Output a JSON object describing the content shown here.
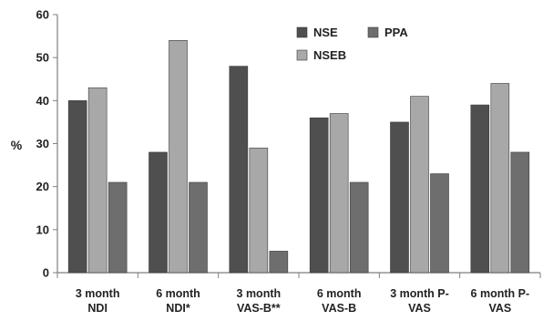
{
  "chart_data": {
    "type": "bar",
    "title": "",
    "xlabel": "",
    "ylabel": "%",
    "ylim": [
      0,
      60
    ],
    "yticks": [
      0,
      10,
      20,
      30,
      40,
      50,
      60
    ],
    "grid": false,
    "legend_position": "top-right",
    "categories": [
      [
        "3 month",
        "NDI"
      ],
      [
        "6 month",
        "NDI*"
      ],
      [
        "3 month",
        "VAS-B**"
      ],
      [
        "6 month",
        "VAS-B"
      ],
      [
        "3 month P-",
        "VAS"
      ],
      [
        "6 month P-",
        "VAS"
      ]
    ],
    "series": [
      {
        "name": "NSE",
        "color": "#4f4f4f",
        "values": [
          40,
          28,
          48,
          36,
          35,
          39
        ]
      },
      {
        "name": "NSEB",
        "color": "#a8a8a8",
        "values": [
          43,
          54,
          29,
          37,
          41,
          44
        ]
      },
      {
        "name": "PPA",
        "color": "#6e6e6e",
        "values": [
          21,
          21,
          5,
          21,
          23,
          28
        ]
      }
    ],
    "legend_rows": [
      [
        "NSE",
        "PPA"
      ],
      [
        "NSEB"
      ]
    ]
  }
}
